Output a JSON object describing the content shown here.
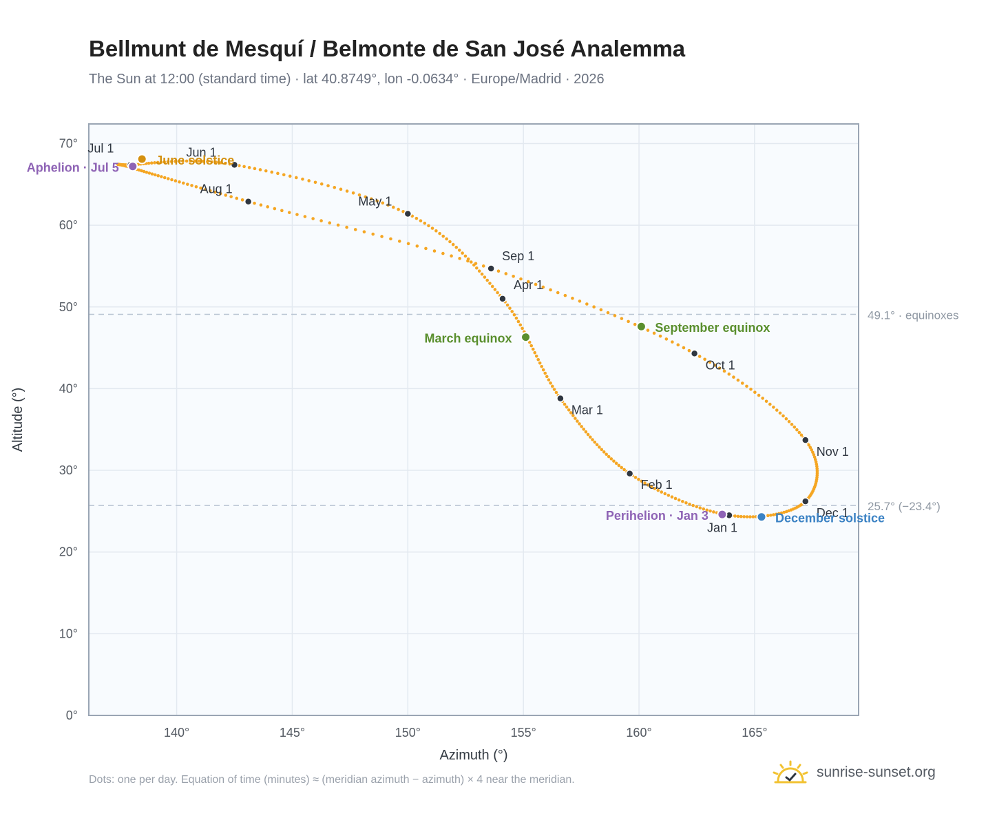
{
  "title": "Bellmunt de Mesquí / Belmonte de San José Analemma",
  "subtitle": "The Sun at 12:00 (standard time) · lat 40.8749°, lon -0.0634° · Europe/Madrid · 2026",
  "footnote": "Dots: one per day. Equation of time (minutes) ≈ (meridian azimuth − azimuth) × 4 near the meridian.",
  "brand": {
    "name": "sunrise-sunset.org",
    "icon": "sun-logo-icon"
  },
  "colors": {
    "curve": "#f5a623",
    "month_marker": "#2f3640",
    "solstice_june": "#d4900f",
    "solstice_december": "#3b82c4",
    "equinox": "#5a8f2e",
    "apsis": "#8e63b5",
    "plot_bg": "#f8fbfe",
    "grid": "#e3e9f0",
    "reference_line": "#b8c4d2"
  },
  "chart_data": {
    "type": "scatter",
    "xlabel": "Azimuth (°)",
    "ylabel": "Altitude (°)",
    "xlim": [
      136.2,
      169.5
    ],
    "ylim": [
      0,
      72.4
    ],
    "xticks": [
      140,
      145,
      150,
      155,
      160,
      165
    ],
    "yticks": [
      0,
      10,
      20,
      30,
      40,
      50,
      60,
      70
    ],
    "tick_suffix": "°",
    "grid": true,
    "series": [
      {
        "mode": "daily dots",
        "points_az_alt": [
          [
            163.9,
            24.5
          ],
          [
            159.6,
            29.6
          ],
          [
            156.6,
            38.8
          ],
          [
            154.1,
            51.0
          ],
          [
            150.0,
            61.4
          ],
          [
            142.5,
            67.4
          ],
          [
            138.0,
            67.4
          ],
          [
            138.1,
            67.0
          ],
          [
            143.1,
            62.9
          ],
          [
            153.6,
            54.7
          ],
          [
            162.4,
            44.3
          ],
          [
            167.2,
            33.7
          ],
          [
            167.2,
            26.2
          ],
          [
            163.9,
            24.5
          ]
        ]
      }
    ],
    "month_markers": [
      {
        "label": "Jan 1",
        "az": 163.9,
        "alt": 24.5
      },
      {
        "label": "Feb 1",
        "az": 159.6,
        "alt": 29.6
      },
      {
        "label": "Mar 1",
        "az": 156.6,
        "alt": 38.8
      },
      {
        "label": "Apr 1",
        "az": 154.1,
        "alt": 51.0
      },
      {
        "label": "May 1",
        "az": 150.0,
        "alt": 61.4
      },
      {
        "label": "Jun 1",
        "az": 142.5,
        "alt": 67.4
      },
      {
        "label": "Jul 1",
        "az": 138.0,
        "alt": 67.4
      },
      {
        "label": "Aug 1",
        "az": 143.1,
        "alt": 62.9
      },
      {
        "label": "Sep 1",
        "az": 153.6,
        "alt": 54.7
      },
      {
        "label": "Oct 1",
        "az": 162.4,
        "alt": 44.3
      },
      {
        "label": "Nov 1",
        "az": 167.2,
        "alt": 33.7
      },
      {
        "label": "Dec 1",
        "az": 167.2,
        "alt": 26.2
      }
    ],
    "events": [
      {
        "label": "June solstice",
        "az": 138.5,
        "alt": 68.1,
        "kind": "solstice_june"
      },
      {
        "label": "Aphelion · Jul 5",
        "az": 138.1,
        "alt": 67.2,
        "kind": "apsis"
      },
      {
        "label": "March equinox",
        "az": 155.1,
        "alt": 46.3,
        "kind": "equinox"
      },
      {
        "label": "September equinox",
        "az": 160.1,
        "alt": 47.6,
        "kind": "equinox"
      },
      {
        "label": "Perihelion · Jan 3",
        "az": 163.6,
        "alt": 24.6,
        "kind": "apsis"
      },
      {
        "label": "December solstice",
        "az": 165.3,
        "alt": 24.3,
        "kind": "solstice_december"
      }
    ],
    "reference_lines": [
      {
        "alt": 49.1,
        "label": "49.1° · equinoxes"
      },
      {
        "alt": 25.7,
        "label": "25.7° (−23.4°)"
      }
    ]
  }
}
